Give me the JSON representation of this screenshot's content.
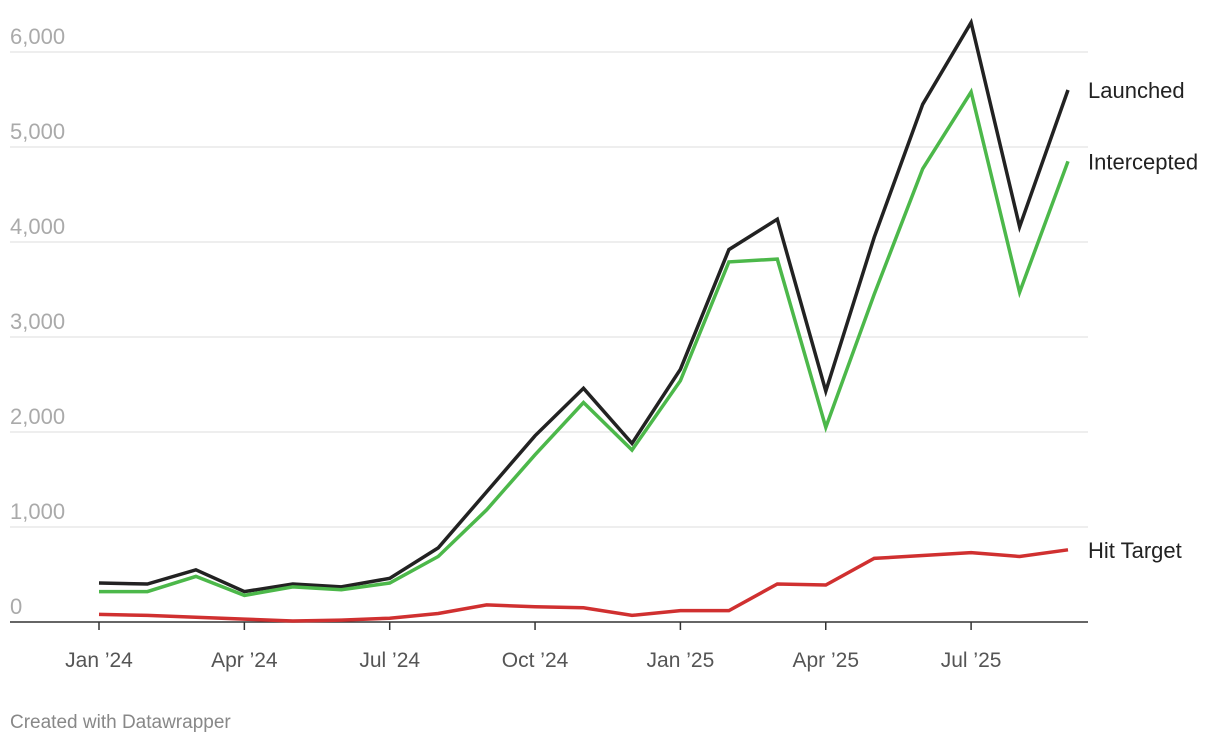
{
  "chart_data": {
    "type": "line",
    "x": [
      "2024-01",
      "2024-02",
      "2024-03",
      "2024-04",
      "2024-05",
      "2024-06",
      "2024-07",
      "2024-08",
      "2024-09",
      "2024-10",
      "2024-11",
      "2024-12",
      "2025-01",
      "2025-02",
      "2025-03",
      "2025-04",
      "2025-05",
      "2025-06",
      "2025-07",
      "2025-08",
      "2025-09"
    ],
    "x_tick_labels": [
      "Jan ’24",
      "Apr ’24",
      "Jul ’24",
      "Oct ’24",
      "Jan ’25",
      "Apr ’25",
      "Jul ’25"
    ],
    "y_tick_labels": [
      "0",
      "1,000",
      "2,000",
      "3,000",
      "4,000",
      "5,000",
      "6,000"
    ],
    "ylim": [
      0,
      6000
    ],
    "grid": true,
    "series": [
      {
        "name": "Launched",
        "color": "#222222",
        "values": [
          410,
          400,
          550,
          320,
          400,
          370,
          460,
          780,
          1370,
          1960,
          2460,
          1880,
          2660,
          3920,
          4240,
          2430,
          4050,
          5450,
          6310,
          4160,
          5600
        ]
      },
      {
        "name": "Intercepted",
        "color": "#4cb84a",
        "values": [
          320,
          320,
          480,
          280,
          370,
          340,
          410,
          690,
          1180,
          1760,
          2310,
          1810,
          2540,
          3790,
          3820,
          2050,
          3450,
          4770,
          5580,
          3470,
          4850
        ]
      },
      {
        "name": "Hit Target",
        "color": "#d03030",
        "values": [
          80,
          70,
          50,
          30,
          10,
          20,
          40,
          90,
          180,
          160,
          150,
          70,
          120,
          120,
          400,
          390,
          670,
          700,
          730,
          690,
          760
        ]
      }
    ]
  },
  "footer": {
    "credit": "Created with Datawrapper"
  }
}
